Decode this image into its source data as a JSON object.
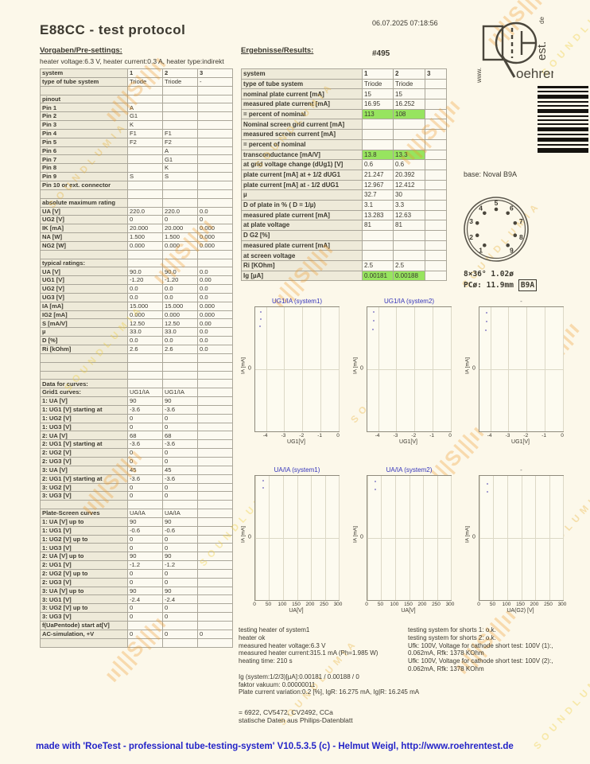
{
  "header": {
    "title": "E88CC  -  test protocol",
    "datetime": "06.07.2025  07:18:56",
    "presettings_label": "Vorgaben/Pre-settings:",
    "results_label": "Ergebnisse/Results:",
    "heater_line": "heater voltage:6.3 V, heater current:0.3 A, heater type:indirekt",
    "serial": "#495"
  },
  "logo": {
    "www": "www.",
    "oehren": "oehren",
    "est": "est.",
    "de": "de"
  },
  "icons": {
    "barcode": "barcode-stripes",
    "logo": "roehrentest-tube-logo",
    "socket": "b9a-socket-diagram"
  },
  "colors": {
    "green_highlight": "#97e45f",
    "chart_title_blue": "#3434bb",
    "footer_blue": "#2424c8"
  },
  "pre_table": {
    "rows": [
      [
        "system",
        "1",
        "2",
        "3",
        "h"
      ],
      [
        "type of tube system",
        "Triode",
        "Triode",
        "-",
        ""
      ],
      [
        "",
        "",
        "",
        "",
        ""
      ],
      [
        "pinout",
        "",
        "",
        "",
        ""
      ],
      [
        "Pin 1",
        "A",
        "",
        "",
        ""
      ],
      [
        "Pin 2",
        "G1",
        "",
        "",
        ""
      ],
      [
        "Pin 3",
        "K",
        "",
        "",
        ""
      ],
      [
        "Pin 4",
        "F1",
        "F1",
        "",
        ""
      ],
      [
        "Pin 5",
        "F2",
        "F2",
        "",
        ""
      ],
      [
        "Pin 6",
        "",
        "A",
        "",
        ""
      ],
      [
        "Pin 7",
        "",
        "G1",
        "",
        ""
      ],
      [
        "Pin 8",
        "",
        "K",
        "",
        ""
      ],
      [
        "Pin 9",
        "S",
        "S",
        "",
        ""
      ],
      [
        "Pin 10 or ext. connector",
        "",
        "",
        "",
        ""
      ],
      [
        "",
        "",
        "",
        "",
        ""
      ],
      [
        "absolute maximum rating",
        "",
        "",
        "",
        ""
      ],
      [
        "UA [V]",
        "220.0",
        "220.0",
        "0.0",
        ""
      ],
      [
        "UG2 [V]",
        "0",
        "0",
        "0",
        ""
      ],
      [
        "IK [mA]",
        "20.000",
        "20.000",
        "0.000",
        ""
      ],
      [
        "NA [W]",
        "1.500",
        "1.500",
        "0.000",
        ""
      ],
      [
        "NG2 [W]",
        "0.000",
        "0.000",
        "0.000",
        ""
      ],
      [
        "",
        "",
        "",
        "",
        ""
      ],
      [
        "typical ratings:",
        "",
        "",
        "",
        ""
      ],
      [
        "UA [V]",
        "90.0",
        "90.0",
        "0.0",
        ""
      ],
      [
        "UG1 [V]",
        "-1.20",
        "-1.20",
        "0.00",
        ""
      ],
      [
        "UG2 [V]",
        "0.0",
        "0.0",
        "0.0",
        ""
      ],
      [
        "UG3 [V]",
        "0.0",
        "0.0",
        "0.0",
        ""
      ],
      [
        "IA [mA]",
        "15.000",
        "15.000",
        "0.000",
        ""
      ],
      [
        "IG2 [mA]",
        "0.000",
        "0.000",
        "0.000",
        ""
      ],
      [
        "S [mA/V]",
        "12.50",
        "12.50",
        "0.00",
        ""
      ],
      [
        "µ",
        "33.0",
        "33.0",
        "0.0",
        ""
      ],
      [
        "D [%]",
        "0.0",
        "0.0",
        "0.0",
        ""
      ],
      [
        "Ri [kOhm]",
        "2.6",
        "2.6",
        "0.0",
        ""
      ],
      [
        "",
        "",
        "",
        "",
        ""
      ],
      [
        "",
        "",
        "",
        "",
        ""
      ],
      [
        "",
        "",
        "",
        "",
        ""
      ],
      [
        "Data for curves:",
        "",
        "",
        "",
        ""
      ],
      [
        "Grid1 curves:",
        "UG1/IA",
        "UG1/IA",
        "",
        ""
      ],
      [
        "1: UA [V]",
        "90",
        "90",
        "",
        ""
      ],
      [
        "1: UG1 [V] starting at",
        "-3.6",
        "-3.6",
        "",
        ""
      ],
      [
        "1: UG2 [V]",
        "0",
        "0",
        "",
        ""
      ],
      [
        "1: UG3 [V]",
        "0",
        "0",
        "",
        ""
      ],
      [
        "2: UA [V]",
        "68",
        "68",
        "",
        ""
      ],
      [
        "2: UG1 [V] starting at",
        "-3.6",
        "-3.6",
        "",
        ""
      ],
      [
        "2: UG2 [V]",
        "0",
        "0",
        "",
        ""
      ],
      [
        "2: UG3 [V]",
        "0",
        "0",
        "",
        ""
      ],
      [
        "3: UA [V]",
        "45",
        "45",
        "",
        ""
      ],
      [
        "2: UG1 [V] starting at",
        "-3.6",
        "-3.6",
        "",
        ""
      ],
      [
        "3: UG2 [V]",
        "0",
        "0",
        "",
        ""
      ],
      [
        "3: UG3 [V]",
        "0",
        "0",
        "",
        ""
      ],
      [
        "",
        "",
        "",
        "",
        ""
      ],
      [
        "Plate-Screen curves",
        "UA/IA",
        "UA/IA",
        "",
        ""
      ],
      [
        "1: UA [V] up to",
        "90",
        "90",
        "",
        ""
      ],
      [
        "1: UG1 [V]",
        "-0.6",
        "-0.6",
        "",
        ""
      ],
      [
        "1: UG2 [V] up to",
        "0",
        "0",
        "",
        ""
      ],
      [
        "1: UG3 [V]",
        "0",
        "0",
        "",
        ""
      ],
      [
        "2: UA [V] up to",
        "90",
        "90",
        "",
        ""
      ],
      [
        "2: UG1 [V]",
        "-1.2",
        "-1.2",
        "",
        ""
      ],
      [
        "2: UG2 [V] up to",
        "0",
        "0",
        "",
        ""
      ],
      [
        "2: UG3 [V]",
        "0",
        "0",
        "",
        ""
      ],
      [
        "3: UA [V] up to",
        "90",
        "90",
        "",
        ""
      ],
      [
        "3: UG1 [V]",
        "-2.4",
        "-2.4",
        "",
        ""
      ],
      [
        "3: UG2 [V] up to",
        "0",
        "0",
        "",
        ""
      ],
      [
        "3: UG3 [V]",
        "0",
        "0",
        "",
        ""
      ],
      [
        "f(UaPentode) start at[V]",
        "",
        "",
        "",
        ""
      ],
      [
        "AC-simulation, +V",
        "0",
        "0",
        "0",
        ""
      ],
      [
        "",
        "",
        "",
        "",
        ""
      ]
    ]
  },
  "res_table": {
    "rows": [
      [
        "system",
        "1",
        "2",
        "3",
        "h"
      ],
      [
        "type of tube system",
        "Triode",
        "Triode",
        "",
        ""
      ],
      [
        "nominal plate current [mA]",
        "15",
        "15",
        "",
        ""
      ],
      [
        "measured plate current [mA]",
        "16.95",
        "16.252",
        "",
        ""
      ],
      [
        "= percent of nominal",
        "113",
        "108",
        "",
        "green"
      ],
      [
        "Nominal screen grid current [mA]",
        "",
        "",
        "",
        ""
      ],
      [
        "measured screen current [mA]",
        "",
        "",
        "",
        ""
      ],
      [
        "= percent of nominal",
        "",
        "",
        "",
        ""
      ],
      [
        "transconductance [mA/V]",
        "13.8",
        "13.3",
        "",
        "green"
      ],
      [
        "at grid voltage change (dUg1) [V]",
        "0.6",
        "0.6",
        "",
        ""
      ],
      [
        "plate current [mA] at + 1/2 dUG1",
        "21.247",
        "20.392",
        "",
        ""
      ],
      [
        "plate current [mA] at - 1/2 dUG1",
        "12.967",
        "12.412",
        "",
        ""
      ],
      [
        "µ",
        "32.7",
        "30",
        "",
        ""
      ],
      [
        "D of plate in % ( D = 1/µ)",
        "3.1",
        "3.3",
        "",
        ""
      ],
      [
        "measured plate current [mA]",
        "13.283",
        "12.63",
        "",
        ""
      ],
      [
        "at plate voltage",
        "81",
        "81",
        "",
        ""
      ],
      [
        "D G2 [%]",
        "",
        "",
        "",
        ""
      ],
      [
        "measured plate current [mA]",
        "",
        "",
        "",
        ""
      ],
      [
        "at screen voltage",
        "",
        "",
        "",
        ""
      ],
      [
        "Ri [KOhm]",
        "2.5",
        "2.5",
        "",
        ""
      ],
      [
        "Ig [µA]",
        "0.00181",
        "0.00188",
        "",
        "green"
      ]
    ]
  },
  "base": {
    "label": "base: Noval B9A",
    "pins": [
      "1",
      "2",
      "3",
      "4",
      "5",
      "6",
      "7",
      "8",
      "9"
    ],
    "dim1": "8×36°  1.02ø",
    "dim2": "PCø: 11.9mm",
    "tag": "B9A"
  },
  "chart_data": [
    {
      "type": "scatter",
      "title": "UG1/IA (system1)",
      "ylabel": "IA [mA]",
      "ytick": "0",
      "xlabel": "UG1[V]",
      "xticks": [
        "-4",
        "-3",
        "-2",
        "-1",
        "0"
      ],
      "points_pct": [
        [
          6,
          3
        ],
        [
          6,
          9
        ],
        [
          5,
          15
        ]
      ]
    },
    {
      "type": "scatter",
      "title": "UG1/IA (system2)",
      "ylabel": "IA [mA]",
      "ytick": "0",
      "xlabel": "UG1[V]",
      "xticks": [
        "-4",
        "-3",
        "-2",
        "-1",
        "0"
      ],
      "points_pct": [
        [
          7,
          3
        ],
        [
          7,
          10
        ],
        [
          6,
          17
        ]
      ]
    },
    {
      "type": "scatter",
      "title": "-",
      "ylabel": "IA [mA]",
      "ytick": "0",
      "xlabel": "UG1[V]",
      "xticks": [
        "-4",
        "-3",
        "-2",
        "-1",
        "0"
      ],
      "points_pct": [
        [
          8,
          4
        ],
        [
          8,
          11
        ],
        [
          7,
          18
        ]
      ]
    },
    {
      "type": "scatter",
      "title": "UA/IA (system1)",
      "ylabel": "IA [mA]",
      "ytick": "0",
      "xlabel": "UA[V]",
      "xticks": [
        "0",
        "50",
        "100",
        "150",
        "200",
        "250",
        "300"
      ],
      "points_pct": [
        [
          9,
          3
        ],
        [
          9,
          9
        ]
      ]
    },
    {
      "type": "scatter",
      "title": "UA/IA (system2)",
      "ylabel": "IA [mA]",
      "ytick": "0",
      "xlabel": "UA[V]",
      "xticks": [
        "0",
        "50",
        "100",
        "150",
        "200",
        "250",
        "300"
      ],
      "points_pct": [
        [
          9,
          4
        ],
        [
          9,
          10
        ]
      ]
    },
    {
      "type": "scatter",
      "title": "-",
      "ylabel": "IA [mA]",
      "ytick": "0",
      "xlabel": "UA(G2) [V]",
      "xticks": [
        "0",
        "50",
        "100",
        "150",
        "200",
        "250",
        "300"
      ],
      "points_pct": [
        [
          9,
          6
        ],
        [
          9,
          12
        ]
      ]
    }
  ],
  "notes_left": [
    "testing heater of system1",
    "heater ok",
    "measured heater voltage:6.3 V",
    "measured heater current:315.1 mA (Ph=1.985 W)",
    "heating time: 210 s",
    "",
    "Ig (system:1/2/3)[µA]:0.00181 / 0.00188 / 0",
    "faktor vakuum: 0.00000011",
    "Plate current variation:0.2 [%], IgR: 16.275 mA, Ig|R: 16.245 mA"
  ],
  "notes_right": [
    "testing system for shorts 1: o.k.",
    "testing system for shorts 2: o.k.",
    "Ufk: 100V, Voltage for cathode short test: 100V (1):,",
    "0.062mA, Rfk: 1378 KOhm",
    "Ufk: 100V, Voltage for cathode short test: 100V (2):,",
    "0.062mA, Rfk: 1378 KOhm"
  ],
  "equivalents": [
    "= 6922,   CV5472,   CV2492,   CCa",
    "statische Daten aus Philips-Datenblatt"
  ],
  "footer": "made with 'RoeTest - professional tube-testing-system' V10.5.3.5 (c) - Helmut Weigl, http://www.roehrentest.de",
  "watermark": {
    "text": "SOUNDLUMIA",
    "logo": "ıı|||S|||ıı"
  }
}
